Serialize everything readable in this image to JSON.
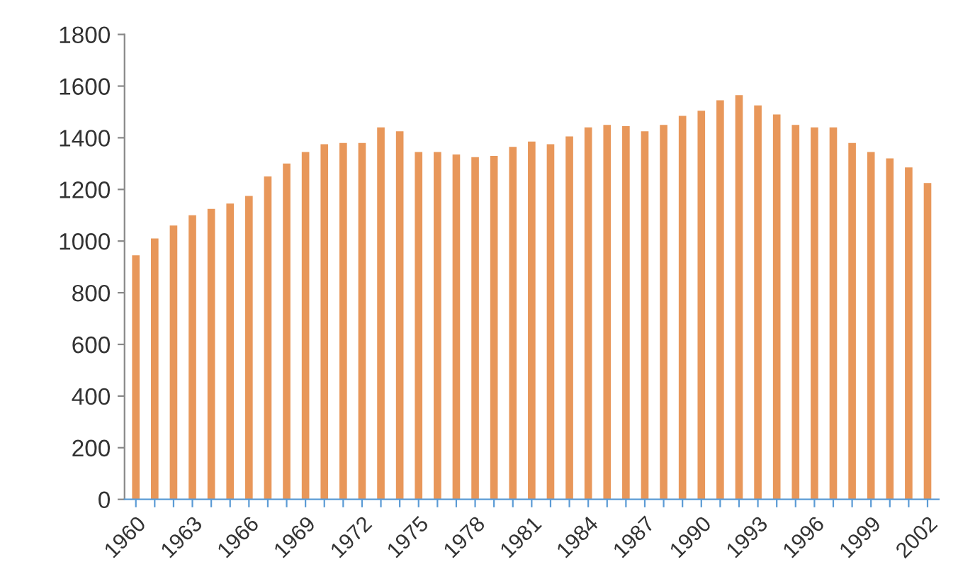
{
  "chart_data": {
    "type": "bar",
    "color": "#e8975a",
    "categories": [
      "1960",
      null,
      null,
      "1963",
      null,
      null,
      "1966",
      null,
      null,
      "1969",
      null,
      null,
      "1972",
      null,
      null,
      "1975",
      null,
      null,
      "1978",
      null,
      null,
      "1981",
      null,
      null,
      "1984",
      null,
      null,
      "1987",
      null,
      null,
      "1990",
      null,
      null,
      "1993",
      null,
      null,
      "1996",
      null,
      null,
      "1999",
      null,
      null,
      "2002"
    ],
    "values": [
      945,
      1010,
      1060,
      1100,
      1125,
      1145,
      1175,
      1250,
      1300,
      1345,
      1375,
      1380,
      1380,
      1440,
      1425,
      1345,
      1345,
      1335,
      1325,
      1330,
      1365,
      1385,
      1375,
      1405,
      1440,
      1450,
      1445,
      1425,
      1450,
      1485,
      1505,
      1545,
      1565,
      1525,
      1490,
      1450,
      1440,
      1440,
      1380,
      1345,
      1320,
      1285,
      1225
    ],
    "ylim": [
      0,
      1800
    ],
    "yticks": [
      0,
      200,
      400,
      600,
      800,
      1000,
      1200,
      1400,
      1600,
      1800
    ],
    "grid": false
  }
}
